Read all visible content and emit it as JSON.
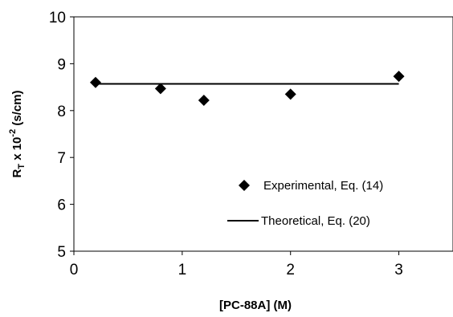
{
  "chart_data": {
    "type": "scatter",
    "xlabel": "[PC-88A] (M)",
    "ylabel": {
      "main": "R",
      "sub": "T",
      "mid": " x 10",
      "sup": "-2",
      "unit": " (s/cm)"
    },
    "xlim": [
      0,
      3.5
    ],
    "ylim": [
      5,
      10
    ],
    "x_ticks": [
      "0",
      "1",
      "2",
      "3"
    ],
    "y_ticks": [
      "5",
      "6",
      "7",
      "8",
      "9",
      "10"
    ],
    "grid": false,
    "legend_position": "bottom-right",
    "series": [
      {
        "name": "Experimental, Eq. (14)",
        "kind": "markers",
        "marker": "diamond",
        "color": "#000000",
        "x": [
          0.2,
          0.8,
          1.2,
          2.0,
          3.0
        ],
        "y": [
          8.6,
          8.47,
          8.22,
          8.35,
          8.73
        ]
      },
      {
        "name": "Theoretical, Eq. (20)",
        "kind": "line",
        "color": "#000000",
        "x": [
          0.2,
          3.0
        ],
        "y": [
          8.57,
          8.57
        ]
      }
    ]
  }
}
